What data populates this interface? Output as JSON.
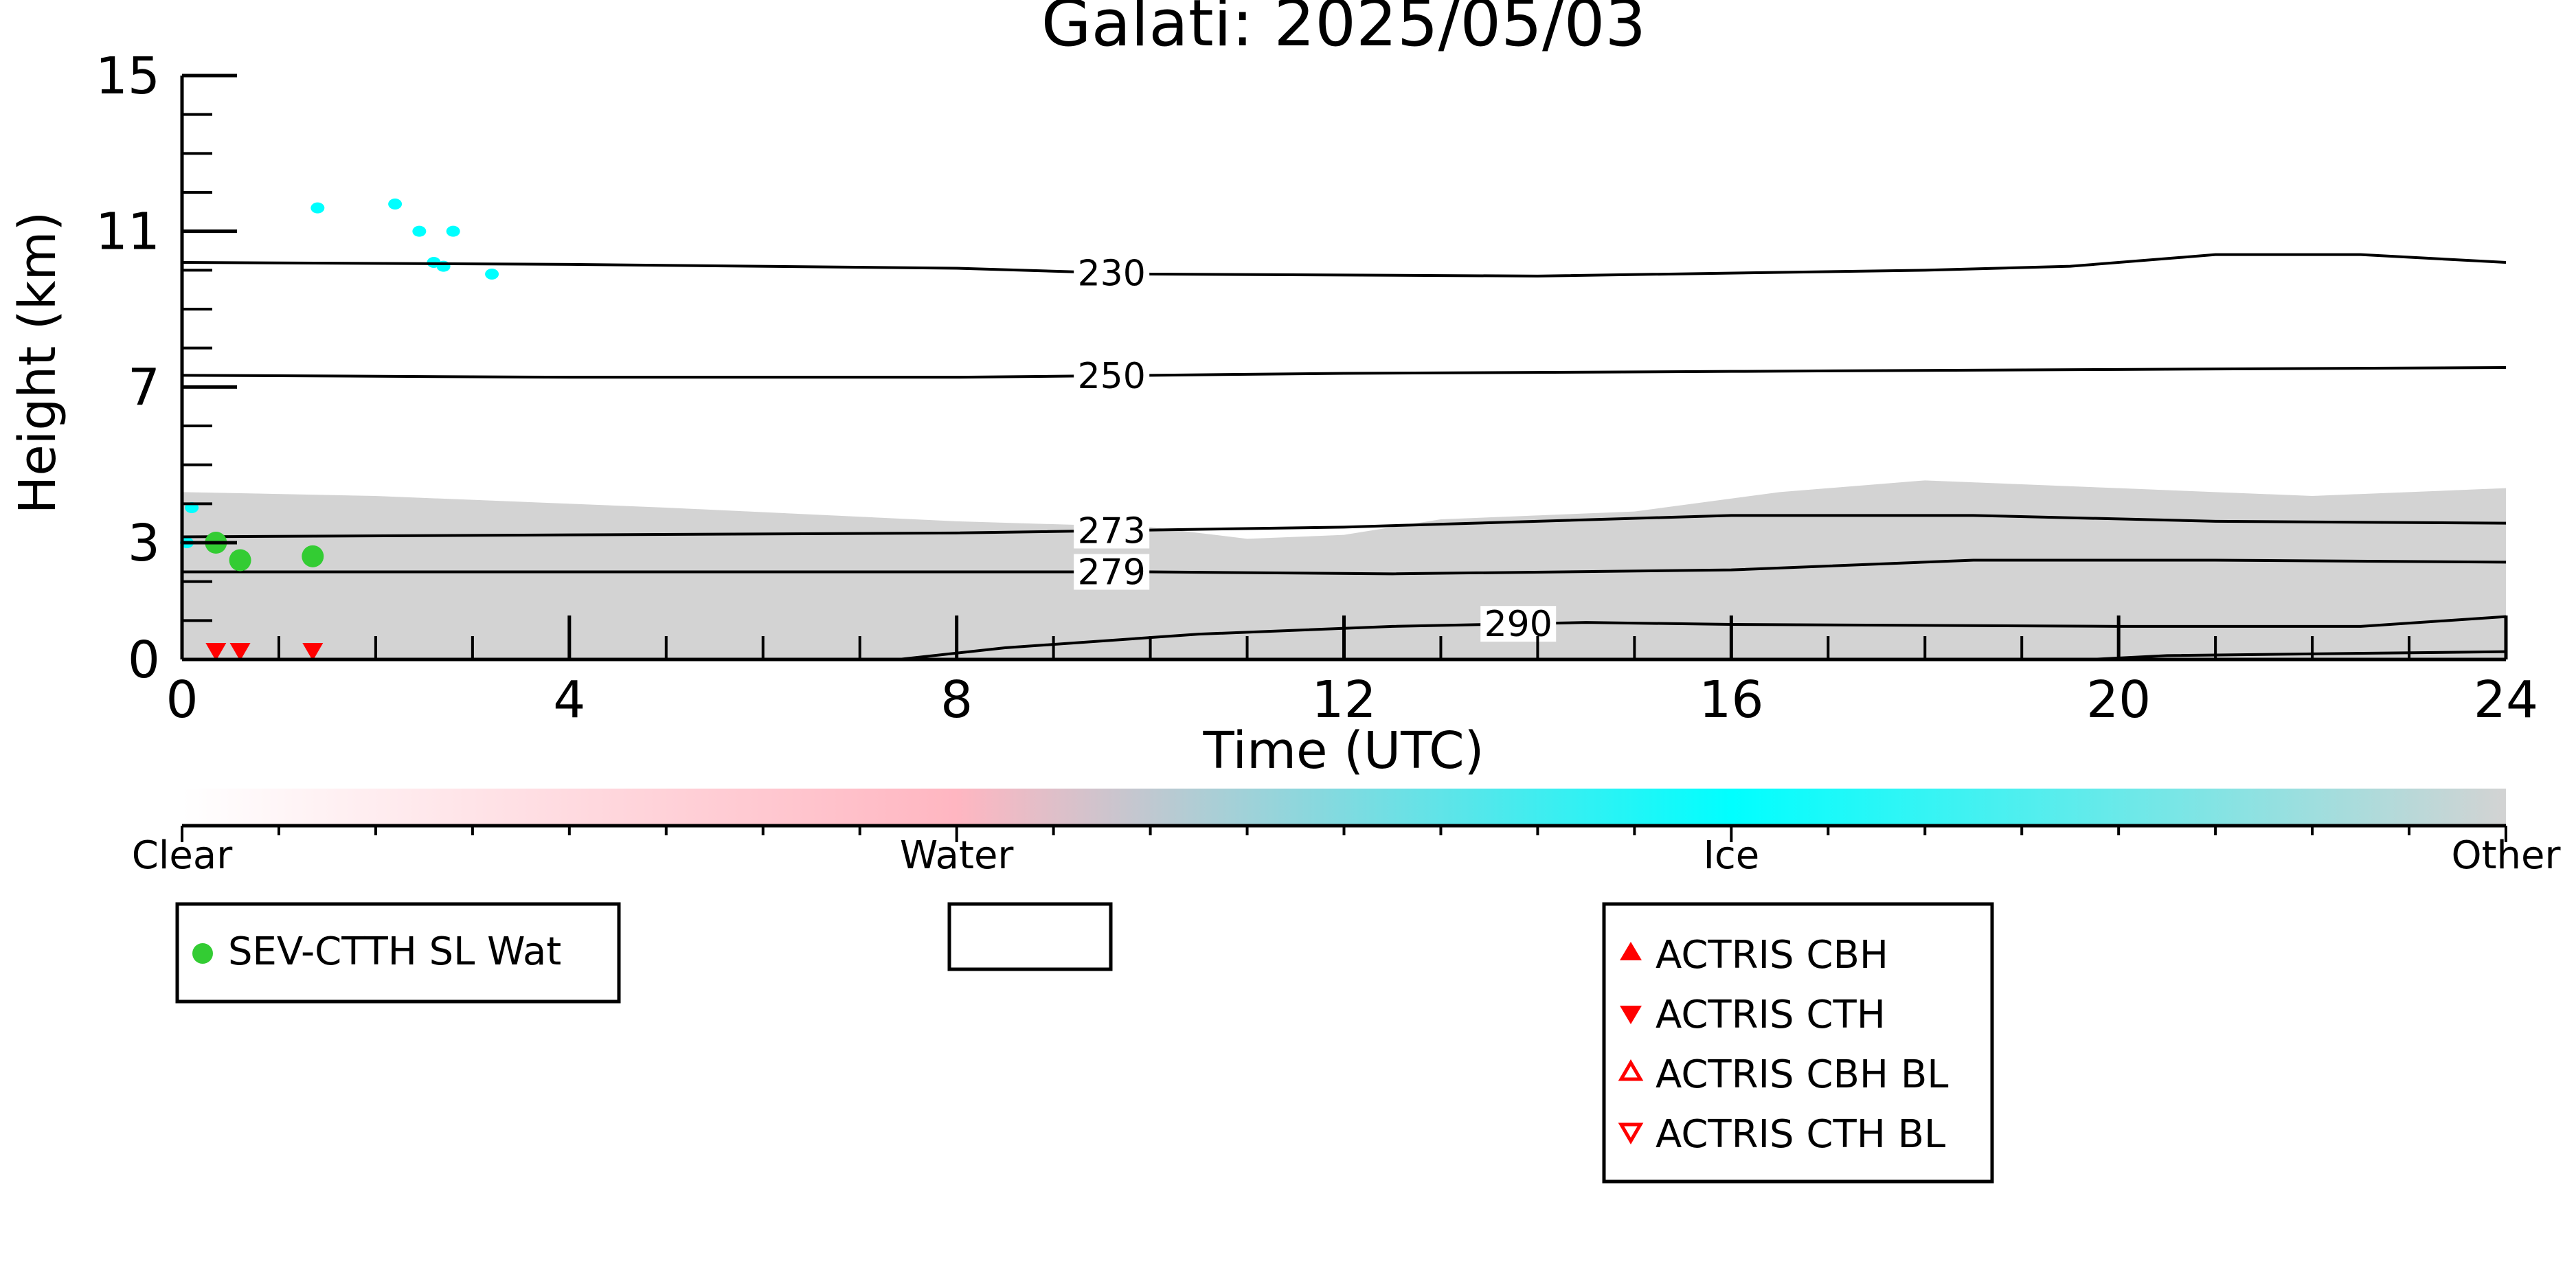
{
  "chart_data": {
    "type": "heatmap",
    "title": "Galati: 2025/05/03",
    "xlabel": "Time (UTC)",
    "ylabel": "Height (km)",
    "xlim": [
      0,
      24
    ],
    "ylim": [
      0,
      15
    ],
    "x_ticks": [
      0,
      4,
      8,
      12,
      16,
      20,
      24
    ],
    "y_ticks": [
      0,
      3,
      7,
      11,
      15
    ],
    "colorbar": {
      "labels": [
        "Clear",
        "Water",
        "Ice",
        "Other"
      ],
      "colors": [
        "#ffffff",
        "#ffb6c1",
        "#00ffff",
        "#d3d3d3"
      ]
    },
    "isotherms": [
      {
        "label": "230",
        "label_x": 9.6,
        "points": [
          [
            0,
            10.2
          ],
          [
            4,
            10.15
          ],
          [
            8,
            10.05
          ],
          [
            10,
            9.9
          ],
          [
            14,
            9.85
          ],
          [
            18,
            10.0
          ],
          [
            19.5,
            10.1
          ],
          [
            21,
            10.4
          ],
          [
            22.5,
            10.4
          ],
          [
            24,
            10.2
          ]
        ]
      },
      {
        "label": "250",
        "label_x": 9.6,
        "points": [
          [
            0,
            7.3
          ],
          [
            4,
            7.25
          ],
          [
            8,
            7.25
          ],
          [
            12,
            7.35
          ],
          [
            16,
            7.4
          ],
          [
            20,
            7.45
          ],
          [
            24,
            7.5
          ]
        ]
      },
      {
        "label": "273",
        "label_x": 9.6,
        "points": [
          [
            0,
            3.15
          ],
          [
            4,
            3.2
          ],
          [
            8,
            3.25
          ],
          [
            12,
            3.4
          ],
          [
            16,
            3.7
          ],
          [
            18.5,
            3.7
          ],
          [
            21,
            3.55
          ],
          [
            24,
            3.5
          ]
        ]
      },
      {
        "label": "279",
        "label_x": 9.6,
        "points": [
          [
            0,
            2.25
          ],
          [
            4,
            2.25
          ],
          [
            8,
            2.25
          ],
          [
            10,
            2.25
          ],
          [
            12.5,
            2.2
          ],
          [
            16,
            2.3
          ],
          [
            18.5,
            2.55
          ],
          [
            21,
            2.55
          ],
          [
            24,
            2.5
          ]
        ]
      },
      {
        "label": "290",
        "label_x": 13.8,
        "points": [
          [
            7.4,
            0.0
          ],
          [
            8.5,
            0.3
          ],
          [
            10.5,
            0.65
          ],
          [
            12.5,
            0.85
          ],
          [
            14.5,
            0.95
          ],
          [
            16,
            0.9
          ],
          [
            20,
            0.85
          ],
          [
            22.5,
            0.85
          ],
          [
            24,
            1.1
          ]
        ]
      },
      {
        "label": "",
        "label_x": null,
        "points": [
          [
            19.7,
            0.0
          ],
          [
            20.5,
            0.1
          ],
          [
            24,
            0.2
          ]
        ]
      }
    ],
    "other_layer": [
      [
        0,
        4.3
      ],
      [
        2,
        4.2
      ],
      [
        5,
        3.9
      ],
      [
        8,
        3.55
      ],
      [
        10,
        3.4
      ],
      [
        11,
        3.1
      ],
      [
        12,
        3.2
      ],
      [
        13,
        3.6
      ],
      [
        15,
        3.8
      ],
      [
        16.5,
        4.3
      ],
      [
        18,
        4.6
      ],
      [
        20,
        4.4
      ],
      [
        22,
        4.2
      ],
      [
        24,
        4.4
      ]
    ],
    "ice_patches": [
      [
        0.05,
        3.0
      ],
      [
        0.1,
        3.9
      ],
      [
        2.6,
        10.2
      ],
      [
        2.7,
        10.1
      ],
      [
        3.2,
        9.9
      ],
      [
        2.45,
        11.0
      ],
      [
        2.8,
        11.0
      ],
      [
        1.4,
        11.6
      ],
      [
        2.2,
        11.7
      ]
    ],
    "series": [
      {
        "name": "SEV-CTTH SL Wat",
        "marker": "circle",
        "color": "#33cc33",
        "points": [
          [
            0.35,
            3.0
          ],
          [
            0.6,
            2.55
          ],
          [
            1.35,
            2.65
          ]
        ]
      },
      {
        "name": "ACTRIS CBH",
        "marker": "triangle-up",
        "color": "#ff0000",
        "points": []
      },
      {
        "name": "ACTRIS CTH",
        "marker": "triangle-down",
        "color": "#ff0000",
        "points": [
          [
            0.35,
            0.0
          ],
          [
            0.6,
            0.0
          ],
          [
            1.35,
            0.0
          ]
        ]
      },
      {
        "name": "ACTRIS CBH BL",
        "marker": "triangle-up-open",
        "color": "#ff0000",
        "points": []
      },
      {
        "name": "ACTRIS CTH BL",
        "marker": "triangle-down-open",
        "color": "#ff0000",
        "points": []
      }
    ]
  }
}
